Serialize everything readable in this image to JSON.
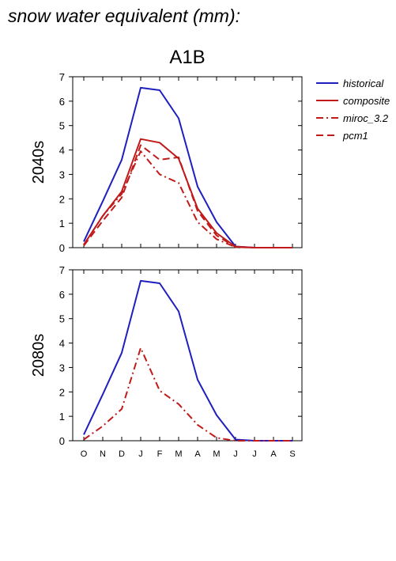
{
  "figure": {
    "title": "snow water equivalent (mm):",
    "scenario": "A1B"
  },
  "colors": {
    "historical": "#1f1fbf",
    "projection": "#c01a1a"
  },
  "legend": {
    "placement": "right",
    "items": [
      {
        "label": "historical",
        "color": "#1f1fbf",
        "dash": "solid"
      },
      {
        "label": "composite",
        "color": "#c01a1a",
        "dash": "solid"
      },
      {
        "label": "miroc_3.2",
        "color": "#c01a1a",
        "dash": "dashdot"
      },
      {
        "label": "pcm1",
        "color": "#c01a1a",
        "dash": "dashed"
      }
    ]
  },
  "chart_data": [
    {
      "type": "line",
      "title": "A1B",
      "row_label": "2040s",
      "categories": [
        "O",
        "N",
        "D",
        "J",
        "F",
        "M",
        "A",
        "M",
        "J",
        "J",
        "A",
        "S"
      ],
      "show_x_ticklabels": false,
      "ylim": [
        0,
        7
      ],
      "yticks": [
        0,
        1,
        2,
        3,
        4,
        5,
        6,
        7
      ],
      "series": [
        {
          "name": "historical",
          "style": "solid",
          "color": "#1f1fbf",
          "values": [
            0.25,
            1.9,
            3.6,
            6.55,
            6.45,
            5.3,
            2.5,
            1.05,
            0.05,
            0.0,
            0.0,
            0.0
          ]
        },
        {
          "name": "composite",
          "style": "solid",
          "color": "#c01a1a",
          "values": [
            0.12,
            1.3,
            2.3,
            4.45,
            4.3,
            3.65,
            1.6,
            0.6,
            0.04,
            0.0,
            0.0,
            0.0
          ]
        },
        {
          "name": "miroc_3.2",
          "style": "dashdot",
          "color": "#c01a1a",
          "values": [
            0.12,
            1.3,
            2.2,
            3.95,
            3.0,
            2.65,
            1.05,
            0.35,
            0.02,
            0.0,
            0.0,
            0.0
          ]
        },
        {
          "name": "pcm1",
          "style": "dashed",
          "color": "#c01a1a",
          "values": [
            0.08,
            1.1,
            2.05,
            4.2,
            3.6,
            3.7,
            1.5,
            0.5,
            0.03,
            0.0,
            0.0,
            0.0
          ]
        }
      ]
    },
    {
      "type": "line",
      "title": "",
      "row_label": "2080s",
      "categories": [
        "O",
        "N",
        "D",
        "J",
        "F",
        "M",
        "A",
        "M",
        "J",
        "J",
        "A",
        "S"
      ],
      "show_x_ticklabels": true,
      "ylim": [
        0,
        7
      ],
      "yticks": [
        0,
        1,
        2,
        3,
        4,
        5,
        6,
        7
      ],
      "series": [
        {
          "name": "historical",
          "style": "solid",
          "color": "#1f1fbf",
          "values": [
            0.25,
            1.9,
            3.6,
            6.55,
            6.45,
            5.3,
            2.5,
            1.05,
            0.05,
            0.0,
            0.0,
            0.0
          ]
        },
        {
          "name": "miroc_3.2",
          "style": "dashdot",
          "color": "#c01a1a",
          "values": [
            0.05,
            0.6,
            1.3,
            3.8,
            2.05,
            1.5,
            0.65,
            0.12,
            0.0,
            0.0,
            0.0,
            0.0
          ]
        }
      ]
    }
  ]
}
